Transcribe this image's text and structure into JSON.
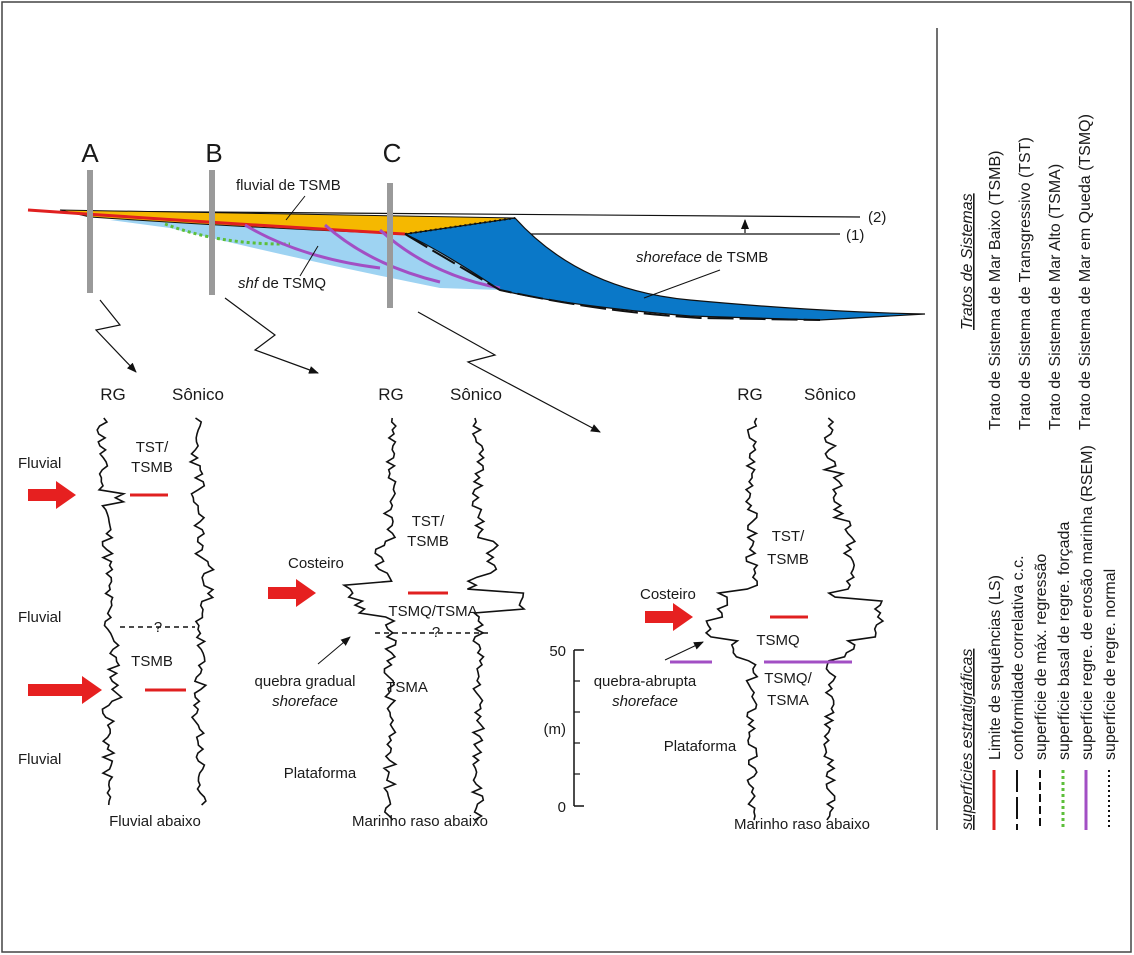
{
  "wells": {
    "a": "A",
    "b": "B",
    "c": "C"
  },
  "cross_section": {
    "fluvial_label": "fluvial de TSMB",
    "shf_italic": "shf",
    "shf_rest": " de TSMQ",
    "shoreface_italic": "shoreface",
    "shoreface_rest": " de TSMB",
    "level_2": "(2)",
    "level_1": "(1)"
  },
  "logs": {
    "rg": "RG",
    "sonico": "Sônico",
    "col1": {
      "facies_top": "Fluvial",
      "facies_mid": "Fluvial",
      "facies_bot": "Fluvial",
      "tract_upper_1": "TST/",
      "tract_upper_2": "TSMB",
      "tract_lower": "TSMB",
      "question": "?",
      "caption": "Fluvial abaixo"
    },
    "col2": {
      "costeiro": "Costeiro",
      "tract_upper_1": "TST/",
      "tract_upper_2": "TSMB",
      "tract_mid": "TSMQ/TSMA",
      "question": "?",
      "tract_lower": "TSMA",
      "quebra_1": "quebra gradual",
      "quebra_2": "shoreface",
      "plataforma": "Plataforma",
      "caption": "Marinho raso abaixo"
    },
    "col3": {
      "costeiro": "Costeiro",
      "tract_upper_1": "TST/",
      "tract_upper_2": "TSMB",
      "tract_mid": "TSMQ",
      "tract_lower_1": "TSMQ/",
      "tract_lower_2": "TSMA",
      "quebra_1": "quebra-abrupta",
      "quebra_2": "shoreface",
      "plataforma": "Plataforma",
      "caption": "Marinho raso abaixo"
    },
    "scale": {
      "top": "50",
      "unit": "(m)",
      "bottom": "0"
    }
  },
  "legend": {
    "tratos_title": "Tratos de Sistemas",
    "tratos": [
      "Trato de Sistema de Mar Baixo (TSMB)",
      "Trato de Sistema de Transgressivo (TST)",
      "Trato de Sistema de Mar Alto (TSMA)",
      "Trato de Sistema de Mar em Queda (TSMQ)"
    ],
    "superficies_title": "superfícies estratigráficas",
    "superficies": [
      "Limite de sequências (LS)",
      "conformidade correlativa c.c.",
      "superfície de máx. regressão",
      "superfície basal de regre. forçada",
      "superfície regre. de erosão marinha (RSEM)",
      "superfície de regre. normal"
    ]
  },
  "colors": {
    "sequence_boundary": "#e02020",
    "fluvial_fill": "#f5b800",
    "tsmq_fill": "#9ed3f2",
    "shoreface_fill": "#0a78c8",
    "rsem": "#a24fc4",
    "forced_regression": "#5cbf3a",
    "well": "#9a9a9a",
    "arrow_red": "#e62020"
  }
}
